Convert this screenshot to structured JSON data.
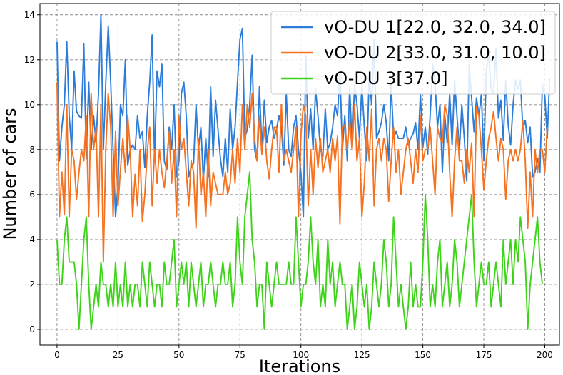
{
  "chart_data": {
    "type": "line",
    "xlabel": "Iterations",
    "ylabel": "Number of cars",
    "xlim": [
      -7,
      206
    ],
    "ylim": [
      -0.7,
      14.5
    ],
    "xticks": [
      0,
      25,
      50,
      75,
      100,
      125,
      150,
      175,
      200
    ],
    "yticks": [
      0,
      2,
      4,
      6,
      8,
      10,
      12,
      14
    ],
    "grid": true,
    "legend_position": "top-right",
    "series": [
      {
        "name": "vO-DU 1[22.0, 32.0, 34.0]",
        "color": "#2d7dd8",
        "x_start": 0,
        "x_step": 1,
        "values": [
          12.8,
          7.5,
          9,
          10,
          12.8,
          9.5,
          8,
          11.5,
          9.7,
          9.5,
          9.4,
          12.7,
          7.6,
          11,
          8,
          9.5,
          8.3,
          10.5,
          14,
          8,
          11,
          13.5,
          11,
          8,
          5,
          6.4,
          10,
          9.5,
          12,
          7.3,
          8,
          8.2,
          8,
          9.5,
          8.5,
          8.8,
          7.2,
          9.5,
          11,
          13.1,
          7.5,
          11.5,
          10.8,
          11.8,
          7.5,
          7.1,
          9,
          8,
          10,
          6.8,
          7.5,
          10.5,
          11,
          9.5,
          6.8,
          7.2,
          7.4,
          10,
          8,
          9,
          6.6,
          8.5,
          6.8,
          10.8,
          7.7,
          10.2,
          8.9,
          7.6,
          6.8,
          8.5,
          7,
          9.8,
          8,
          9,
          11,
          12.9,
          13.4,
          8.5,
          8.9,
          10,
          12.2,
          8,
          7.5,
          10.8,
          8,
          10.2,
          8.3,
          9,
          9.3,
          8.5,
          8.9,
          9.5,
          9,
          7.3,
          10.5,
          8,
          7.7,
          9,
          9.5,
          8,
          7,
          5,
          12.2,
          8.5,
          9.8,
          8,
          10.7,
          9.5,
          8,
          7.7,
          9.8,
          8,
          8.3,
          9,
          10,
          9.5,
          11.5,
          8,
          9.5,
          7.5,
          10.8,
          8,
          10.9,
          10,
          8.5,
          10.9,
          9,
          7.5,
          11.3,
          10,
          12.9,
          8.5,
          8.8,
          9.2,
          10,
          9.2,
          7.5,
          11,
          8.5,
          8.8,
          8.5,
          8.5,
          8.5,
          9,
          8.2,
          8.5,
          8.7,
          9.2,
          8,
          10.5,
          8.1,
          9,
          7.8,
          9.5,
          11.8,
          11,
          9,
          10,
          7,
          9.5,
          8.3,
          10.5,
          8.2,
          11.1,
          9.5,
          8,
          10,
          8.5,
          6.6,
          11.8,
          10.3,
          8.8,
          10.3,
          9.5,
          10.5,
          7.5,
          11.5,
          12.2,
          10.7,
          10.5,
          12.5,
          9.4,
          10.2,
          8.4,
          11.1,
          9.1,
          8.2,
          10,
          11.1,
          10.7,
          11.1,
          8.9,
          9.3,
          8.3,
          9,
          6.8,
          7,
          7.6,
          7,
          10.9,
          10.4,
          8.5,
          11.2
        ]
      },
      {
        "name": "vO-DU 2[33.0, 31.0, 10.0]",
        "color": "#f57220",
        "x_start": 0,
        "x_step": 1,
        "values": [
          11,
          5,
          7,
          5.1,
          10,
          5,
          8,
          7.5,
          5.8,
          7,
          8,
          7.5,
          9.5,
          5,
          10.5,
          8,
          9,
          5,
          10,
          3,
          8,
          10.5,
          9,
          5,
          8.8,
          5.5,
          7.1,
          8.5,
          7,
          9.5,
          8,
          5,
          6.9,
          5.5,
          8,
          4.8,
          6,
          7.9,
          9,
          5.5,
          8,
          6.5,
          8,
          7,
          6.3,
          7.5,
          8.8,
          6.5,
          8,
          5,
          9.5,
          8,
          8.5,
          7,
          5.5,
          7.5,
          7,
          4.5,
          8.5,
          6,
          7,
          5,
          8,
          5.5,
          7,
          6.5,
          6,
          6,
          6,
          7,
          6,
          6.5,
          8,
          6.5,
          8.5,
          7,
          10,
          8,
          10,
          9,
          10.5,
          8.5,
          7.5,
          9.5,
          7.8,
          9,
          7.5,
          6.7,
          8,
          9,
          9,
          7,
          10,
          7.5,
          8,
          7.5,
          7,
          8,
          9,
          5,
          8.6,
          10,
          9.5,
          5.5,
          8,
          6,
          8.5,
          7.2,
          8.5,
          7,
          7.5,
          8,
          7,
          8.5,
          7.5,
          8.6,
          4.7,
          9,
          9.1,
          8,
          9.3,
          8,
          10,
          7.5,
          8.5,
          5,
          6.5,
          9,
          7.5,
          9.8,
          5.5,
          8,
          8.5,
          7.5,
          8.5,
          8,
          5.7,
          7.5,
          9,
          7,
          8,
          6,
          7,
          8,
          8.5,
          7.5,
          6.5,
          8,
          7,
          9.5,
          7.5,
          8,
          8,
          9,
          7.5,
          6,
          9,
          8.5,
          8.3,
          10,
          9.5,
          7,
          5,
          7.5,
          9,
          7.5,
          7.5,
          6.5,
          8,
          7,
          8.3,
          5,
          9.9,
          9.5,
          8,
          6.2,
          7.5,
          8.5,
          9,
          9.7,
          8.5,
          7.5,
          8.5,
          8,
          5.8,
          7.5,
          8,
          7.5,
          8,
          7.5,
          8,
          9.3,
          7.5,
          4.5,
          7,
          5,
          8,
          7,
          8,
          8,
          7,
          9
        ]
      },
      {
        "name": "vO-DU 3[37.0]",
        "color": "#3ed31a",
        "x_start": 0,
        "x_step": 1,
        "values": [
          4,
          2,
          2,
          4,
          5,
          3,
          3,
          3,
          2,
          0,
          2,
          4,
          5,
          2,
          0,
          1,
          2,
          1,
          3,
          2,
          2,
          1,
          2,
          1,
          3,
          1,
          2,
          1,
          3,
          1,
          2,
          1,
          2,
          2,
          1,
          3,
          2,
          1,
          3,
          2,
          1,
          2,
          2,
          1,
          3,
          2,
          2,
          3,
          4,
          1,
          2,
          3,
          2,
          3,
          1,
          3,
          2,
          1,
          2,
          3,
          1,
          2,
          2,
          3,
          2,
          1,
          2,
          2,
          3,
          2,
          2,
          3,
          1,
          2,
          5,
          3,
          2,
          5,
          6,
          7,
          4,
          3,
          1,
          2,
          2,
          0,
          3,
          2,
          1,
          2,
          3,
          2,
          2,
          2,
          2,
          3,
          2,
          2,
          5,
          3,
          1,
          2,
          2,
          3,
          5,
          3,
          2,
          4,
          1,
          2,
          1,
          4,
          2,
          3,
          1,
          2,
          3,
          2,
          2,
          0,
          1,
          2,
          0,
          1,
          3,
          2,
          1,
          2,
          0,
          1,
          3,
          2,
          1,
          2,
          4,
          3,
          1,
          2,
          5,
          3,
          1,
          2,
          1,
          0,
          1,
          3,
          1,
          2,
          1,
          1,
          3,
          6,
          4,
          1,
          2,
          1,
          3,
          4,
          1,
          2,
          3,
          1,
          2,
          4,
          3,
          1,
          2,
          3,
          4,
          5,
          6,
          3,
          1,
          2,
          3,
          2,
          2,
          3,
          1,
          2,
          3,
          2,
          1,
          4,
          2,
          3,
          4,
          2,
          4,
          3,
          5,
          4,
          3,
          0,
          2,
          3,
          4,
          5,
          3,
          2
        ]
      }
    ]
  }
}
